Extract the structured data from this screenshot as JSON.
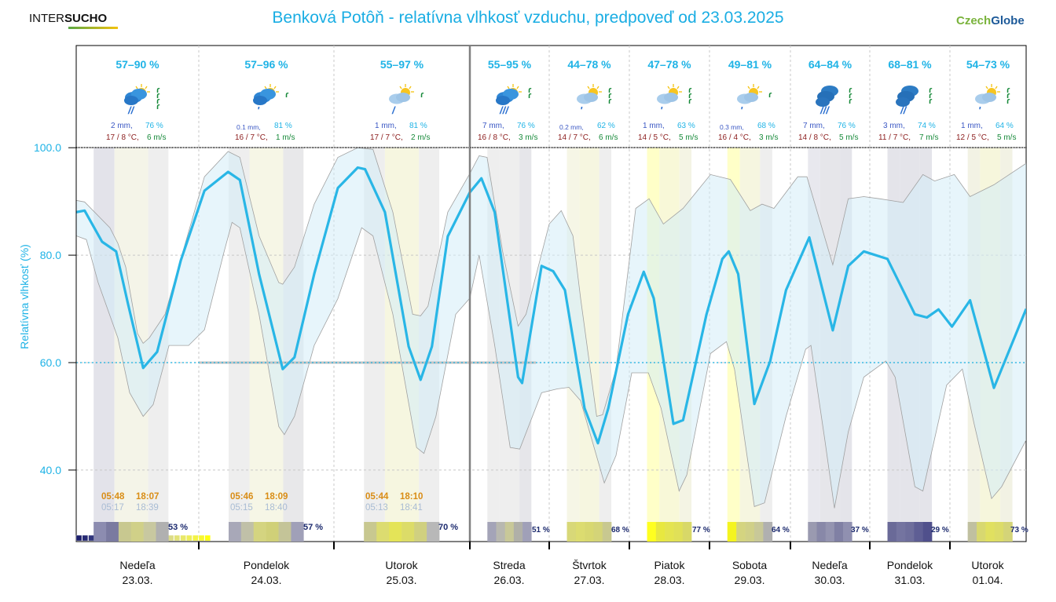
{
  "header": {
    "logo_left_a": "INTER",
    "logo_left_b": "SUCHO",
    "title": "Benková Potôň - relatívna vlhkosť vzduchu, predpoveď od 23.03.2025",
    "logo_right_a": "Czech",
    "logo_right_b": "Globe"
  },
  "colors": {
    "accent": "#1fb3e6",
    "mean_line": "#29b6e6",
    "band_fill": "#e3f3fb",
    "band_edge": "#a0a0a0",
    "temp": "#8b1c1c",
    "wind": "#178a3a",
    "precip": "#3b58c4"
  },
  "days": [
    {
      "weekday": "Nedeľa",
      "date": "23.03.",
      "range": "57–90 %",
      "precip": "2 mm,",
      "precip_small": false,
      "hum": "76 %",
      "temp": "17 / 8 °C,",
      "wind": "6 m/s",
      "icon": "sun-cloud-rain",
      "rain": "//",
      "wind_level": 4,
      "sunrise": "05:48",
      "sunset": "18:07",
      "twilight_start": "05:17",
      "twilight_end": "18:39",
      "sunshine": "53 %"
    },
    {
      "weekday": "Pondelok",
      "date": "24.03.",
      "range": "57–96 %",
      "precip": "0.1 mm,",
      "precip_small": true,
      "hum": "81 %",
      "temp": "16 / 7 °C,",
      "wind": "1 m/s",
      "icon": "sun-cloud-drizzle",
      "rain": "'",
      "wind_level": 1,
      "sunrise": "05:46",
      "sunset": "18:09",
      "twilight_start": "05:15",
      "twilight_end": "18:40",
      "sunshine": "57 %"
    },
    {
      "weekday": "Utorok",
      "date": "25.03.",
      "range": "55–97 %",
      "precip": "1 mm,",
      "precip_small": false,
      "hum": "81 %",
      "temp": "17 / 7 °C,",
      "wind": "2 m/s",
      "icon": "sun-light-cloud",
      "rain": "/",
      "wind_level": 1,
      "sunrise": "05:44",
      "sunset": "18:10",
      "twilight_start": "05:13",
      "twilight_end": "18:41",
      "sunshine": "70 %"
    },
    {
      "weekday": "Streda",
      "date": "26.03.",
      "range": "55–95 %",
      "precip": "7 mm,",
      "precip_small": false,
      "hum": "76 %",
      "temp": "16 / 8 °C,",
      "wind": "3 m/s",
      "icon": "sun-cloud-rain",
      "rain": "///",
      "wind_level": 2,
      "sunshine": "51 %"
    },
    {
      "weekday": "Štvrtok",
      "date": "27.03.",
      "range": "44–78 %",
      "precip": "0.2 mm,",
      "precip_small": true,
      "hum": "62 %",
      "temp": "14 / 7 °C,",
      "wind": "6 m/s",
      "icon": "sun-light-cloud",
      "rain": "'",
      "wind_level": 3,
      "sunshine": "68 %"
    },
    {
      "weekday": "Piatok",
      "date": "28.03.",
      "range": "47–78 %",
      "precip": "1 mm,",
      "precip_small": false,
      "hum": "63 %",
      "temp": "14 / 5 °C,",
      "wind": "5 m/s",
      "icon": "sun-light-cloud",
      "rain": "'",
      "wind_level": 3,
      "sunshine": "77 %"
    },
    {
      "weekday": "Sobota",
      "date": "29.03.",
      "range": "49–81 %",
      "precip": "0.3 mm,",
      "precip_small": true,
      "hum": "68 %",
      "temp": "16 / 4 °C,",
      "wind": "3 m/s",
      "icon": "sun-light-cloud",
      "rain": "'",
      "wind_level": 1,
      "sunshine": "64 %"
    },
    {
      "weekday": "Nedeľa",
      "date": "30.03.",
      "range": "64–84 %",
      "precip": "7 mm,",
      "precip_small": false,
      "hum": "76 %",
      "temp": "14 / 8 °C,",
      "wind": "5 m/s",
      "icon": "heavy-cloud-rain",
      "rain": "///",
      "wind_level": 3,
      "sunshine": "37 %"
    },
    {
      "weekday": "Pondelok",
      "date": "31.03.",
      "range": "68–81 %",
      "precip": "3 mm,",
      "precip_small": false,
      "hum": "74 %",
      "temp": "11 / 7 °C,",
      "wind": "7 m/s",
      "icon": "heavy-cloud-rain",
      "rain": "//",
      "wind_level": 3,
      "sunshine": "29 %"
    },
    {
      "weekday": "Utorok",
      "date": "01.04.",
      "range": "54–73 %",
      "precip": "1 mm,",
      "precip_small": false,
      "hum": "64 %",
      "temp": "12 / 5 °C,",
      "wind": "5 m/s",
      "icon": "sun-light-cloud",
      "rain": "'",
      "wind_level": 3,
      "sunshine": "73 %"
    }
  ],
  "chart_data": {
    "type": "line",
    "title": "Benková Potôň - relatívna vlhkosť vzduchu, predpoveď od 23.03.2025",
    "xlabel": "",
    "ylabel": "Relatívna vlhkosť (%)",
    "x_unit": "hours since 23.03. 00:00",
    "xlim": [
      2.2,
      238.7
    ],
    "ylim": [
      26.5,
      100
    ],
    "yticks": [
      40,
      60,
      80,
      100
    ],
    "ytick_labels": [
      "40.0",
      "60.0",
      "80.0",
      "100.0"
    ],
    "reference_line": 60,
    "grid": true,
    "legend": "none",
    "series": [
      {
        "name": "mean",
        "points": [
          [
            2.2,
            88
          ],
          [
            3.7,
            88.3
          ],
          [
            6.8,
            82.5
          ],
          [
            9.3,
            80.7
          ],
          [
            11.4,
            71
          ],
          [
            14.1,
            59
          ],
          [
            16.6,
            62
          ],
          [
            20.8,
            79
          ],
          [
            25.0,
            92
          ],
          [
            29.2,
            95.5
          ],
          [
            31.3,
            94
          ],
          [
            34.7,
            76.5
          ],
          [
            38.9,
            58.8
          ],
          [
            41.0,
            61
          ],
          [
            44.5,
            76.5
          ],
          [
            48.7,
            92.5
          ],
          [
            52.2,
            96.3
          ],
          [
            53.5,
            96
          ],
          [
            57.0,
            88
          ],
          [
            61.2,
            63
          ],
          [
            63.3,
            56.8
          ],
          [
            65.3,
            63
          ],
          [
            68.1,
            83.5
          ],
          [
            72.0,
            91.7
          ],
          [
            75.5,
            94.3
          ],
          [
            79.5,
            88
          ],
          [
            86.6,
            57.3
          ],
          [
            87.8,
            56.2
          ],
          [
            93.7,
            78
          ],
          [
            97.2,
            77
          ],
          [
            100.7,
            73.5
          ],
          [
            106.6,
            51.5
          ],
          [
            110.6,
            45
          ],
          [
            113.7,
            51.5
          ],
          [
            119.6,
            69
          ],
          [
            124.3,
            76.9
          ],
          [
            127.3,
            72
          ],
          [
            133.2,
            48.6
          ],
          [
            136.1,
            49.3
          ],
          [
            143.1,
            69
          ],
          [
            147.8,
            79.3
          ],
          [
            149.7,
            80.7
          ],
          [
            152.5,
            76.5
          ],
          [
            157.3,
            52.3
          ],
          [
            162.0,
            60.3
          ],
          [
            166.7,
            73.5
          ],
          [
            173.7,
            83.3
          ],
          [
            180.8,
            66
          ],
          [
            185.5,
            78
          ],
          [
            190.2,
            80.7
          ],
          [
            197.3,
            79.3
          ],
          [
            205.5,
            69
          ],
          [
            209.1,
            68.4
          ],
          [
            212.6,
            69.9
          ],
          [
            216.6,
            66.7
          ],
          [
            222.0,
            71.6
          ],
          [
            229.1,
            55.3
          ],
          [
            238.7,
            70
          ]
        ]
      },
      {
        "name": "upper",
        "points": [
          [
            2.2,
            90.2
          ],
          [
            3.7,
            89.9
          ],
          [
            8.2,
            85.1
          ],
          [
            9.6,
            82.2
          ],
          [
            11.0,
            77.8
          ],
          [
            13.1,
            65.4
          ],
          [
            14.1,
            63.6
          ],
          [
            15.2,
            64.6
          ],
          [
            18.0,
            69
          ],
          [
            20.8,
            79.3
          ],
          [
            25.0,
            94.6
          ],
          [
            29.2,
            99.3
          ],
          [
            31.3,
            98.2
          ],
          [
            34.7,
            83.6
          ],
          [
            38.2,
            74.9
          ],
          [
            38.9,
            74.6
          ],
          [
            41.0,
            77.8
          ],
          [
            44.5,
            89.5
          ],
          [
            48.7,
            98.2
          ],
          [
            52.2,
            100
          ],
          [
            54.9,
            99.7
          ],
          [
            58.4,
            88
          ],
          [
            61.9,
            69
          ],
          [
            63.3,
            68.7
          ],
          [
            64.6,
            70.5
          ],
          [
            68.1,
            88
          ],
          [
            72.0,
            95.2
          ],
          [
            74.8,
            98.5
          ],
          [
            77.2,
            98.2
          ],
          [
            81.9,
            80.7
          ],
          [
            86.6,
            66.8
          ],
          [
            89.0,
            69
          ],
          [
            96.0,
            85.8
          ],
          [
            99.6,
            88.3
          ],
          [
            103.1,
            83.6
          ],
          [
            105.4,
            71.9
          ],
          [
            110.2,
            50
          ],
          [
            112.0,
            50.3
          ],
          [
            116.0,
            58.8
          ],
          [
            121.9,
            88.7
          ],
          [
            125.9,
            90.5
          ],
          [
            130.2,
            85.8
          ],
          [
            136.1,
            88.7
          ],
          [
            144.3,
            95
          ],
          [
            150.2,
            94.1
          ],
          [
            156.1,
            88.3
          ],
          [
            159.6,
            89.5
          ],
          [
            163.1,
            88.7
          ],
          [
            170.2,
            94.6
          ],
          [
            173.0,
            94.6
          ],
          [
            180.8,
            78.2
          ],
          [
            185.5,
            90.5
          ],
          [
            190.2,
            90.9
          ],
          [
            194.9,
            90.5
          ],
          [
            202.0,
            89.8
          ],
          [
            207.9,
            95
          ],
          [
            211.4,
            93.8
          ],
          [
            217.3,
            95
          ],
          [
            222.0,
            90.9
          ],
          [
            229.1,
            93.1
          ],
          [
            238.7,
            97.1
          ]
        ]
      },
      {
        "name": "lower",
        "points": [
          [
            2.2,
            83.6
          ],
          [
            4.0,
            82.9
          ],
          [
            6.1,
            74.9
          ],
          [
            9.6,
            64.6
          ],
          [
            11.7,
            54.4
          ],
          [
            14.1,
            50
          ],
          [
            15.9,
            52.2
          ],
          [
            18.7,
            63.2
          ],
          [
            22.2,
            63.2
          ],
          [
            25.0,
            66.1
          ],
          [
            28.5,
            80.7
          ],
          [
            29.9,
            86.1
          ],
          [
            31.3,
            85.1
          ],
          [
            34.7,
            69
          ],
          [
            38.2,
            48.1
          ],
          [
            39.2,
            46.6
          ],
          [
            41.0,
            50
          ],
          [
            44.5,
            63.2
          ],
          [
            48.7,
            71.9
          ],
          [
            52.9,
            85.1
          ],
          [
            54.9,
            83.6
          ],
          [
            58.4,
            69
          ],
          [
            62.6,
            44.2
          ],
          [
            63.9,
            43.1
          ],
          [
            66.0,
            50
          ],
          [
            69.5,
            69
          ],
          [
            72.0,
            72
          ],
          [
            74.8,
            80
          ],
          [
            79.5,
            63.2
          ],
          [
            84.2,
            44.2
          ],
          [
            87.1,
            43.9
          ],
          [
            93.7,
            54.4
          ],
          [
            98.4,
            55.1
          ],
          [
            101.9,
            55.4
          ],
          [
            105.4,
            52.9
          ],
          [
            112.5,
            37.6
          ],
          [
            116.0,
            42.7
          ],
          [
            120.7,
            58.1
          ],
          [
            125.7,
            58.1
          ],
          [
            129.5,
            51.5
          ],
          [
            134.9,
            36.1
          ],
          [
            137.2,
            39.1
          ],
          [
            144.3,
            61.7
          ],
          [
            149.0,
            63.9
          ],
          [
            151.4,
            58.8
          ],
          [
            157.3,
            33.2
          ],
          [
            160.3,
            33.9
          ],
          [
            166.7,
            50
          ],
          [
            172.6,
            62.5
          ],
          [
            174.2,
            63.2
          ],
          [
            178.4,
            45.6
          ],
          [
            181.3,
            32.9
          ],
          [
            185.5,
            47.1
          ],
          [
            190.2,
            57.3
          ],
          [
            196.8,
            60.3
          ],
          [
            199.6,
            57.3
          ],
          [
            205.5,
            36.9
          ],
          [
            207.9,
            36.1
          ],
          [
            215.0,
            55.8
          ],
          [
            219.7,
            58.8
          ],
          [
            223.2,
            48.6
          ],
          [
            228.4,
            34.7
          ],
          [
            231.4,
            36.9
          ],
          [
            238.7,
            45.6
          ]
        ]
      }
    ],
    "x_categories": [
      {
        "label": "Nedeľa",
        "date": "23.03."
      },
      {
        "label": "Pondelok",
        "date": "24.03."
      },
      {
        "label": "Utorok",
        "date": "25.03."
      },
      {
        "label": "Streda",
        "date": "26.03."
      },
      {
        "label": "Štvrtok",
        "date": "27.03."
      },
      {
        "label": "Piatok",
        "date": "28.03."
      },
      {
        "label": "Sobota",
        "date": "29.03."
      },
      {
        "label": "Nedeľa",
        "date": "30.03."
      },
      {
        "label": "Pondelok",
        "date": "31.03."
      },
      {
        "label": "Utorok",
        "date": "01.04."
      }
    ]
  }
}
